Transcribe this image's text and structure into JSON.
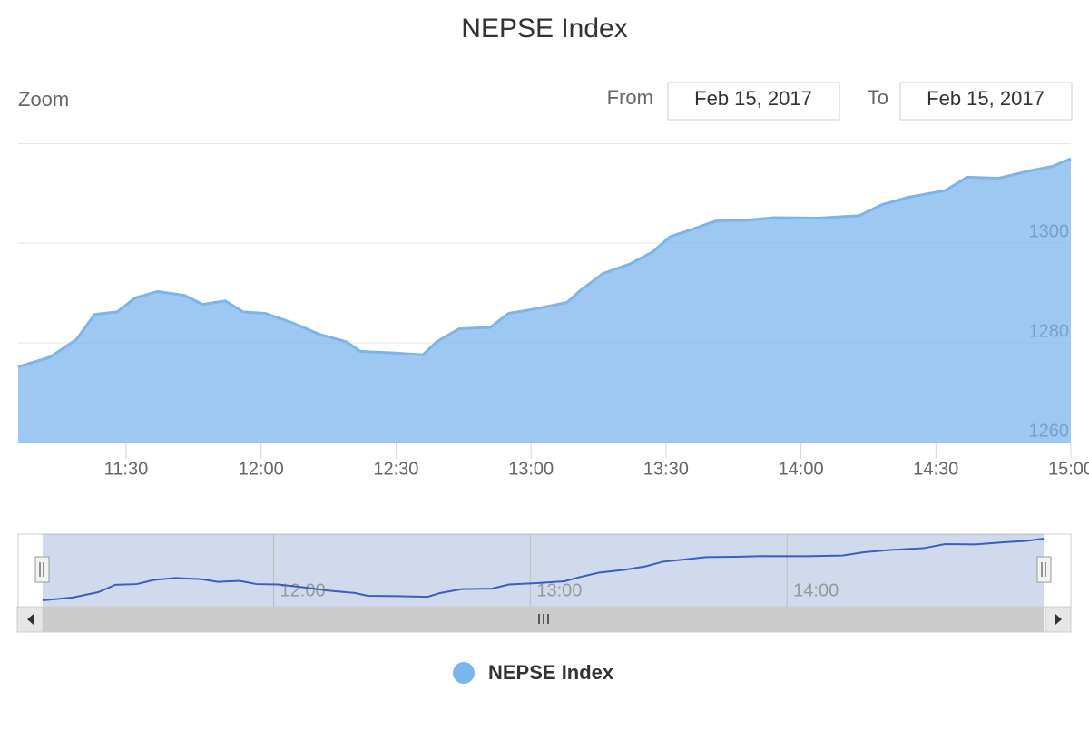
{
  "chart_data": {
    "type": "area",
    "title": "NEPSE Index",
    "range_selector": {
      "label": "Zoom",
      "from_label": "From",
      "from": "Feb 15, 2017",
      "to_label": "To",
      "to": "Feb 15, 2017"
    },
    "x": [
      "11:06",
      "11:13",
      "11:19",
      "11:23",
      "11:28",
      "11:32",
      "11:37",
      "11:43",
      "11:47",
      "11:52",
      "11:56",
      "12:01",
      "12:07",
      "12:13",
      "12:19",
      "12:22",
      "12:29",
      "12:36",
      "12:39",
      "12:44",
      "12:51",
      "12:55",
      "13:01",
      "13:08",
      "13:11",
      "13:16",
      "13:22",
      "13:27",
      "13:31",
      "13:36",
      "13:41",
      "13:48",
      "13:54",
      "14:04",
      "14:13",
      "14:18",
      "14:24",
      "14:32",
      "14:37",
      "14:44",
      "14:51",
      "14:56",
      "15:00"
    ],
    "series": [
      {
        "name": "NEPSE Index",
        "color": "#7cb5ec",
        "values": [
          1275.2,
          1277.1,
          1280.7,
          1285.7,
          1286.2,
          1289.0,
          1290.3,
          1289.5,
          1287.7,
          1288.4,
          1286.2,
          1285.9,
          1284.0,
          1281.7,
          1280.2,
          1278.3,
          1278.0,
          1277.6,
          1280.2,
          1282.8,
          1283.1,
          1285.9,
          1286.8,
          1288.1,
          1290.5,
          1293.9,
          1295.8,
          1298.2,
          1301.3,
          1302.8,
          1304.4,
          1304.6,
          1305.1,
          1305.0,
          1305.5,
          1307.7,
          1309.2,
          1310.5,
          1313.2,
          1313.0,
          1314.5,
          1315.4,
          1316.9
        ]
      }
    ],
    "xlim": [
      "11:06",
      "15:00"
    ],
    "xticks": [
      "11:30",
      "12:00",
      "12:30",
      "13:00",
      "13:30",
      "14:00",
      "14:30",
      "15:00"
    ],
    "ylim": [
      1260,
      1320
    ],
    "yticks": [
      1260,
      1280,
      1300
    ],
    "grid": true,
    "navigator_xticks": [
      "12:00",
      "13:00",
      "14:00"
    ],
    "legend": "bottom"
  }
}
